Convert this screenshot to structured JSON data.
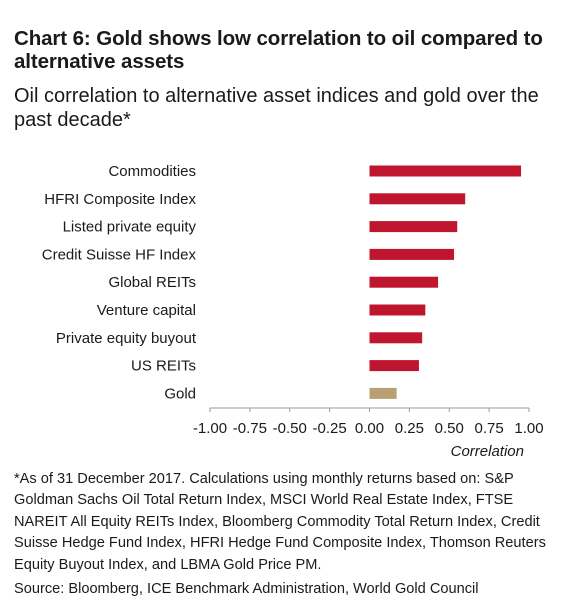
{
  "title": "Chart 6: Gold shows low correlation to oil compared to alternative assets",
  "subtitle": "Oil correlation to alternative asset indices and gold over the past decade*",
  "note": "*As of 31 December 2017. Calculations using monthly returns based on: S&P Goldman Sachs Oil Total Return Index, MSCI World Real Estate Index, FTSE NAREIT All Equity REITs Index, Bloomberg Commodity Total Return Index, Credit Suisse Hedge Fund Index, HFRI Hedge Fund Composite Index, Thomson Reuters Equity Buyout Index, and LBMA Gold Price PM.",
  "source": "Source: Bloomberg, ICE Benchmark Administration, World Gold Council",
  "colors": {
    "bar": "#c0152f",
    "gold": "#b7a074",
    "axis": "#999999"
  },
  "chart_data": {
    "type": "bar",
    "orientation": "horizontal",
    "categories": [
      "Commodities",
      "HFRI Composite Index",
      "Listed private equity",
      "Credit Suisse HF Index",
      "Global REITs",
      "Venture capital",
      "Private equity buyout",
      "US REITs",
      "Gold"
    ],
    "values": [
      0.95,
      0.6,
      0.55,
      0.53,
      0.43,
      0.35,
      0.33,
      0.31,
      0.17
    ],
    "highlight": "Gold",
    "xlabel": "Correlation",
    "xlim": [
      -1.0,
      1.0
    ],
    "xticks": [
      "-1.00",
      "-0.75",
      "-0.50",
      "-0.25",
      "0.00",
      "0.25",
      "0.50",
      "0.75",
      "1.00"
    ],
    "grid": false
  }
}
